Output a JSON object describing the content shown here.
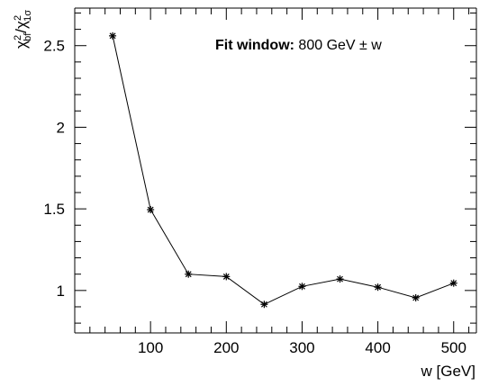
{
  "chart_data": {
    "type": "line",
    "x": [
      50,
      100,
      150,
      200,
      250,
      300,
      350,
      400,
      450,
      500
    ],
    "series": [
      {
        "values": [
          2.56,
          1.495,
          1.1,
          1.085,
          0.915,
          1.025,
          1.07,
          1.02,
          0.955,
          1.045
        ]
      }
    ],
    "xlabel": "w [GeV]",
    "ylabel_main": "χ",
    "ylabel_num_sup": "2",
    "ylabel_num_sub": "bf",
    "ylabel_den_sup": "2",
    "ylabel_den_sub": "1σ",
    "xlim": [
      0,
      530
    ],
    "ylim": [
      0.74,
      2.73
    ],
    "x_ticks": [
      100,
      200,
      300,
      400,
      500
    ],
    "x_tick_labels": [
      "100",
      "200",
      "300",
      "400",
      "500"
    ],
    "y_ticks": [
      1,
      1.5,
      2,
      2.5
    ],
    "y_tick_labels": [
      "1",
      "1.5",
      "2",
      "2.5"
    ],
    "grid": false,
    "marker": "asterisk",
    "annotation_bold": "Fit window:",
    "annotation_rest": " 800 GeV ± w"
  }
}
